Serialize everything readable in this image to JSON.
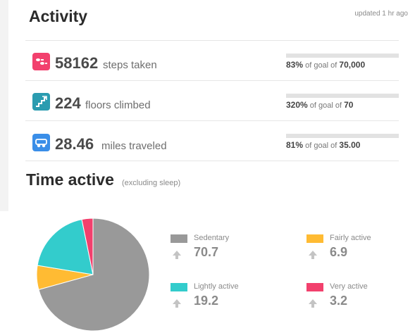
{
  "activity": {
    "title": "Activity",
    "updated": "updated 1 hr ago",
    "stats": [
      {
        "icon": "footprints-icon",
        "color": "#f2406d",
        "value": "58162",
        "unit": "steps taken",
        "percent": "83%",
        "goal_prefix": "of goal of",
        "goal": "70,000"
      },
      {
        "icon": "stairs-icon",
        "color": "#2b9cb0",
        "value": "224",
        "unit": "floors climbed",
        "percent": "320%",
        "goal_prefix": "of goal of",
        "goal": "70"
      },
      {
        "icon": "car-icon",
        "color": "#3a8ee8",
        "value": "28.46",
        "unit": "miles traveled",
        "percent": "81%",
        "goal_prefix": "of goal of",
        "goal": "35.00"
      }
    ]
  },
  "time_active": {
    "title": "Time active",
    "subtitle": "(excluding sleep)"
  },
  "chart_data": {
    "type": "pie",
    "categories": [
      "Sedentary",
      "Fairly active",
      "Lightly active",
      "Very active"
    ],
    "values": [
      70.7,
      6.9,
      19.2,
      3.2
    ],
    "colors": [
      "#999999",
      "#ffbb33",
      "#33cccc",
      "#f2406d"
    ],
    "legend_placement": "right"
  },
  "legend": [
    {
      "label": "Sedentary",
      "value": "70.7",
      "color": "#999999",
      "icon": "arrow-up-icon"
    },
    {
      "label": "Fairly active",
      "value": "6.9",
      "color": "#ffbb33",
      "icon": "arrow-up-icon"
    },
    {
      "label": "Lightly active",
      "value": "19.2",
      "color": "#33cccc",
      "icon": "arrow-up-icon"
    },
    {
      "label": "Very active",
      "value": "3.2",
      "color": "#f2406d",
      "icon": "arrow-up-icon"
    }
  ]
}
